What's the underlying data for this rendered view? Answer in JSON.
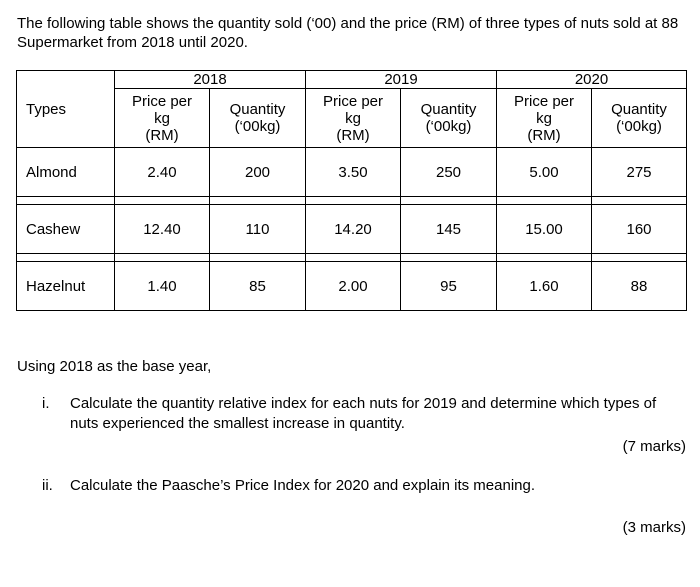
{
  "intro": "The following table shows the quantity sold (‘00) and the price (RM) of three types of nuts sold at 88 Supermarket from 2018 until 2020.",
  "table": {
    "types_header": "Types",
    "years": [
      "2018",
      "2019",
      "2020"
    ],
    "price_header": [
      "Price per",
      "kg",
      "(RM)"
    ],
    "quantity_header": [
      "Quantity",
      "(‘00kg)"
    ],
    "rows": [
      {
        "type": "Almond",
        "values": [
          "2.40",
          "200",
          "3.50",
          "250",
          "5.00",
          "275"
        ]
      },
      {
        "type": "Cashew",
        "values": [
          "12.40",
          "110",
          "14.20",
          "145",
          "15.00",
          "160"
        ]
      },
      {
        "type": "Hazelnut",
        "values": [
          "1.40",
          "85",
          "2.00",
          "95",
          "1.60",
          "88"
        ]
      }
    ]
  },
  "base_year_text": "Using 2018 as the base year,",
  "questions": [
    {
      "number": "i.",
      "text": "Calculate the quantity relative index for each nuts for 2019 and determine which types of nuts experienced the smallest increase in quantity.",
      "marks": "(7 marks)"
    },
    {
      "number": "ii.",
      "text": "Calculate the Paasche’s Price Index for 2020 and explain its meaning.",
      "marks": "(3 marks)"
    }
  ]
}
